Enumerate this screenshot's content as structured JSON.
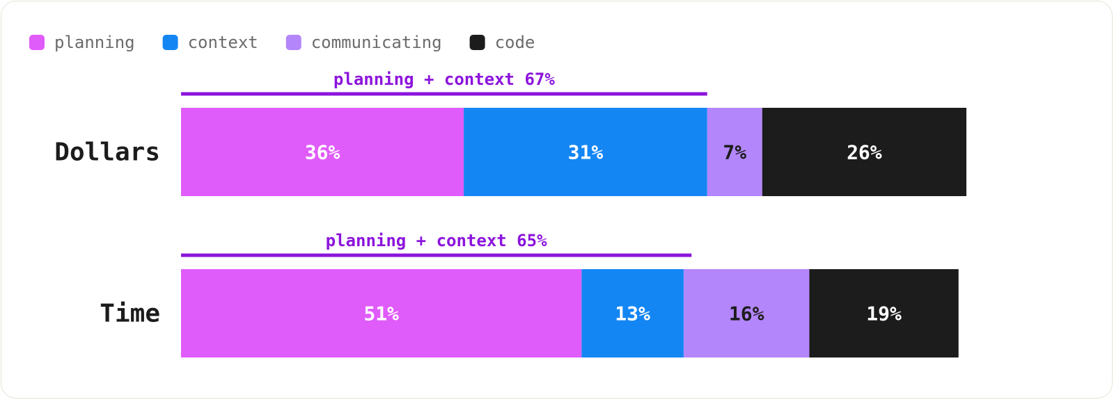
{
  "chart_data": {
    "type": "bar",
    "orientation": "horizontal",
    "stacked": true,
    "normalized": true,
    "title": "",
    "xlabel": "",
    "ylabel": "",
    "xlim": [
      0,
      100
    ],
    "grid": false,
    "legend_position": "top-left",
    "unit": "%",
    "categories": [
      "Dollars",
      "Time"
    ],
    "series": [
      {
        "name": "planning",
        "color": "#e05cfa",
        "label_color": "#ffffff",
        "values": [
          36,
          51
        ],
        "labels": [
          "36%",
          "51%"
        ]
      },
      {
        "name": "context",
        "color": "#1486f4",
        "label_color": "#ffffff",
        "values": [
          31,
          13
        ],
        "labels": [
          "31%",
          "13%"
        ]
      },
      {
        "name": "communicating",
        "color": "#b386fb",
        "label_color": "#1c1c1c",
        "values": [
          7,
          16
        ],
        "labels": [
          "7%",
          "16%"
        ]
      },
      {
        "name": "code",
        "color": "#1c1c1c",
        "label_color": "#ffffff",
        "values": [
          26,
          19
        ],
        "labels": [
          "26%",
          "19%"
        ]
      }
    ],
    "annotations": [
      {
        "category": "Dollars",
        "text": "planning + context 67%",
        "value": 67,
        "color": "#8c14dc"
      },
      {
        "category": "Time",
        "text": "planning + context 65%",
        "value": 65,
        "color": "#8c14dc"
      }
    ]
  }
}
